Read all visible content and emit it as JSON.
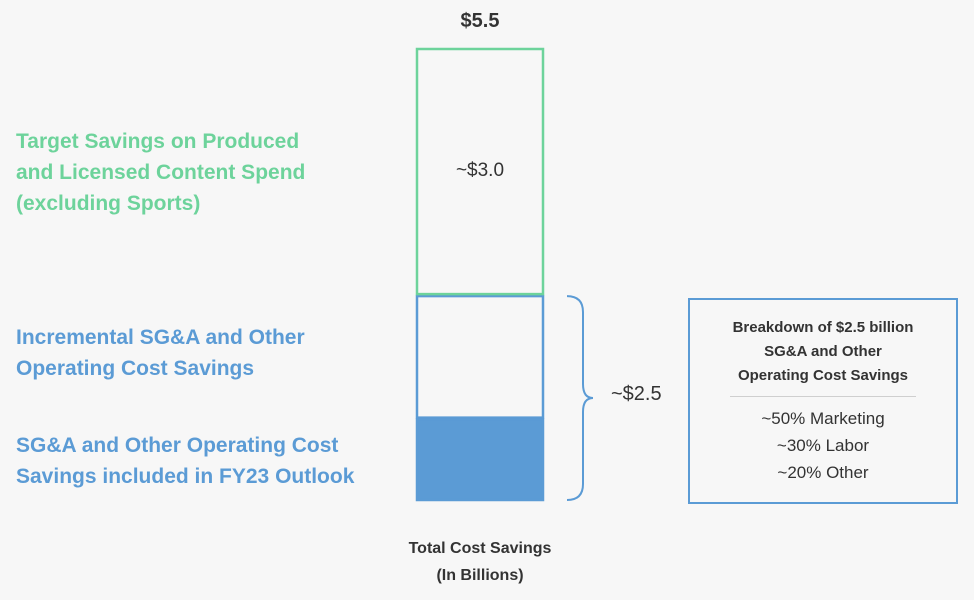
{
  "chart_data": {
    "type": "bar",
    "stacked": true,
    "xlabel_lines": [
      "Total Cost Savings",
      "(In Billions)"
    ],
    "total_label": "$5.5",
    "total": 5.5,
    "segments": [
      {
        "name_lines": [
          "SG&A and Other Operating Cost",
          "Savings included in FY23 Outlook"
        ],
        "value": 1.0,
        "value_label": "",
        "style": "filled",
        "color": "#5b9bd5"
      },
      {
        "name_lines": [
          "Incremental SG&A and Other",
          "Operating Cost Savings"
        ],
        "value": 1.5,
        "value_label": "",
        "style": "outline",
        "color": "#5b9bd5"
      },
      {
        "name_lines": [
          "Target Savings on Produced",
          "and Licensed Content Spend",
          "(excluding Sports)"
        ],
        "value": 3.0,
        "value_label": "~$3.0",
        "style": "outline",
        "color": "#6dd39b"
      }
    ],
    "bracket_label": "~$2.5",
    "ylim": [
      0,
      5.5
    ]
  },
  "breakdown": {
    "title_lines": [
      "Breakdown of $2.5 billion",
      "SG&A and Other",
      "Operating Cost Savings"
    ],
    "items": [
      "~50% Marketing",
      "~30% Labor",
      "~20% Other"
    ]
  }
}
